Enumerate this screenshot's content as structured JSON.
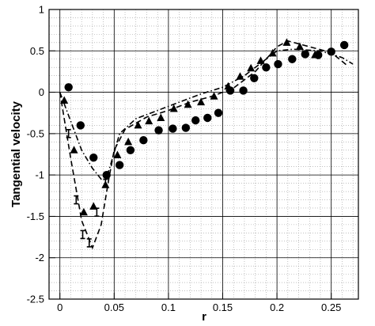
{
  "chart_data": {
    "type": "scatter",
    "title": "",
    "xlabel": "r",
    "ylabel": "Tangential velocity",
    "xlim": [
      -0.01,
      0.275
    ],
    "ylim": [
      -2.5,
      1
    ],
    "xticks": [
      0,
      0.05,
      0.1,
      0.15,
      0.2,
      0.25
    ],
    "xtick_labels": [
      "0",
      "0.05",
      "0.1",
      "0.15",
      "0.2",
      "0.25"
    ],
    "yticks": [
      -2.5,
      -2,
      -1.5,
      -1,
      -0.5,
      0,
      0.5,
      1
    ],
    "ytick_labels": [
      "-2.5",
      "-2",
      "-1.5",
      "-1",
      "-0.5",
      "0",
      "0.5",
      "1"
    ],
    "grid": true,
    "series": [
      {
        "marker": "circle",
        "x": [
          0.008,
          0.019,
          0.031,
          0.043,
          0.055,
          0.065,
          0.077,
          0.091,
          0.104,
          0.116,
          0.125,
          0.136,
          0.146,
          0.157,
          0.169,
          0.179,
          0.19,
          0.201,
          0.214,
          0.226,
          0.238,
          0.25,
          0.262
        ],
        "y": [
          0.06,
          -0.4,
          -0.79,
          -1,
          -0.88,
          -0.7,
          -0.58,
          -0.46,
          -0.44,
          -0.43,
          -0.34,
          -0.31,
          -0.25,
          0.02,
          0.02,
          0.17,
          0.3,
          0.34,
          0.4,
          0.46,
          0.45,
          0.49,
          0.57
        ]
      },
      {
        "marker": "triangle",
        "x": [
          0.004,
          0.013,
          0.022,
          0.031,
          0.042,
          0.053,
          0.063,
          0.072,
          0.082,
          0.093,
          0.105,
          0.118,
          0.13,
          0.142,
          0.155,
          0.166,
          0.176,
          0.185,
          0.196,
          0.209,
          0.221,
          0.235
        ],
        "y": [
          -0.1,
          -0.7,
          -1.45,
          -1.38,
          -1.12,
          -0.76,
          -0.6,
          -0.4,
          -0.35,
          -0.31,
          -0.2,
          -0.15,
          -0.12,
          -0.05,
          0.07,
          0.19,
          0.29,
          0.38,
          0.47,
          0.6,
          0.55,
          0.45
        ]
      },
      {
        "marker": "ibar",
        "x": [
          0.008,
          0.015,
          0.021,
          0.027,
          0.034,
          0.042
        ],
        "y": [
          -0.5,
          -1.3,
          -1.72,
          -1.82,
          -1.45,
          -1.1
        ]
      }
    ],
    "lines": [
      {
        "style": "dashed",
        "x": [
          0,
          0.01,
          0.02,
          0.03,
          0.038,
          0.045,
          0.05,
          0.06,
          0.08,
          0.1,
          0.12,
          0.14,
          0.16,
          0.18,
          0.2,
          0.21,
          0.23,
          0.25,
          0.265
        ],
        "y": [
          0,
          -0.8,
          -1.55,
          -1.88,
          -1.6,
          -1.05,
          -0.7,
          -0.45,
          -0.3,
          -0.22,
          -0.12,
          -0.05,
          0.05,
          0.25,
          0.55,
          0.62,
          0.55,
          0.48,
          0.32
        ]
      },
      {
        "style": "dash-dot",
        "x": [
          0,
          0.01,
          0.02,
          0.03,
          0.038,
          0.045,
          0.055,
          0.07,
          0.09,
          0.11,
          0.13,
          0.15,
          0.17,
          0.19,
          0.2,
          0.215,
          0.24,
          0.26,
          0.27
        ],
        "y": [
          0,
          -0.35,
          -0.7,
          -0.92,
          -1.05,
          -0.95,
          -0.5,
          -0.32,
          -0.22,
          -0.12,
          -0.02,
          0.06,
          0.2,
          0.4,
          0.5,
          0.52,
          0.5,
          0.42,
          0.34
        ]
      }
    ]
  }
}
